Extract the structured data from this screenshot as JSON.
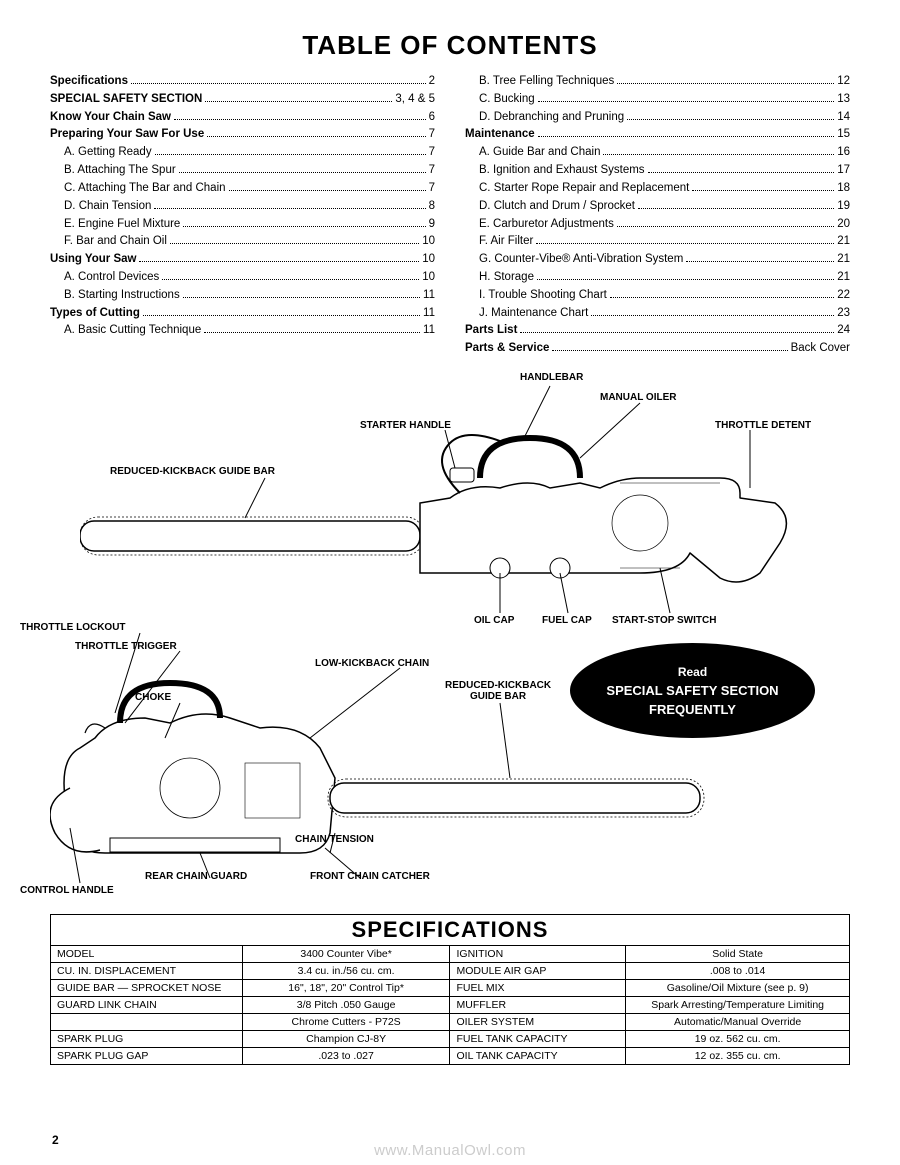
{
  "title": "TABLE OF CONTENTS",
  "toc_left": [
    {
      "label": "Specifications",
      "page": "2",
      "bold": true
    },
    {
      "label": "SPECIAL SAFETY SECTION",
      "page": "3, 4 & 5",
      "bold": true
    },
    {
      "label": "Know Your Chain Saw",
      "page": "6",
      "bold": true
    },
    {
      "label": "Preparing Your Saw For Use",
      "page": "7",
      "bold": true
    },
    {
      "label": "A. Getting Ready",
      "page": "7",
      "sub": true
    },
    {
      "label": "B. Attaching The Spur",
      "page": "7",
      "sub": true
    },
    {
      "label": "C. Attaching The Bar and Chain",
      "page": "7",
      "sub": true
    },
    {
      "label": "D. Chain Tension",
      "page": "8",
      "sub": true
    },
    {
      "label": "E. Engine Fuel Mixture",
      "page": "9",
      "sub": true
    },
    {
      "label": "F. Bar and Chain Oil",
      "page": "10",
      "sub": true
    },
    {
      "label": "Using Your Saw",
      "page": "10",
      "bold": true
    },
    {
      "label": "A. Control Devices",
      "page": "10",
      "sub": true
    },
    {
      "label": "B. Starting Instructions",
      "page": "11",
      "sub": true
    },
    {
      "label": "Types of Cutting",
      "page": "11",
      "bold": true
    },
    {
      "label": "A. Basic Cutting Technique",
      "page": "11",
      "sub": true
    }
  ],
  "toc_right": [
    {
      "label": "B. Tree Felling Techniques",
      "page": "12",
      "sub": true
    },
    {
      "label": "C. Bucking",
      "page": "13",
      "sub": true
    },
    {
      "label": "D. Debranching and Pruning",
      "page": "14",
      "sub": true
    },
    {
      "label": "Maintenance",
      "page": "15",
      "bold": true
    },
    {
      "label": "A. Guide Bar and Chain",
      "page": "16",
      "sub": true
    },
    {
      "label": "B. Ignition and Exhaust Systems",
      "page": "17",
      "sub": true
    },
    {
      "label": "C. Starter Rope Repair and Replacement",
      "page": "18",
      "sub": true
    },
    {
      "label": "D. Clutch and Drum / Sprocket",
      "page": "19",
      "sub": true
    },
    {
      "label": "E. Carburetor Adjustments",
      "page": "20",
      "sub": true
    },
    {
      "label": "F. Air Filter",
      "page": "21",
      "sub": true
    },
    {
      "label": "G. Counter-Vibe® Anti-Vibration System",
      "page": "21",
      "sub": true
    },
    {
      "label": "H. Storage",
      "page": "21",
      "sub": true
    },
    {
      "label": "I. Trouble Shooting Chart",
      "page": "22",
      "sub": true
    },
    {
      "label": "J. Maintenance Chart",
      "page": "23",
      "sub": true
    },
    {
      "label": "Parts List",
      "page": "24",
      "bold": true
    },
    {
      "label": "Parts & Service",
      "page": "Back Cover",
      "bold": true
    }
  ],
  "diagram": {
    "labels": {
      "handlebar": "HANDLEBAR",
      "manual_oiler": "MANUAL OILER",
      "starter_handle": "STARTER HANDLE",
      "throttle_detent": "THROTTLE DETENT",
      "reduced_kickback_guide_bar": "REDUCED-KICKBACK GUIDE BAR",
      "oil_cap": "OIL CAP",
      "fuel_cap": "FUEL CAP",
      "start_stop_switch": "START-STOP SWITCH",
      "throttle_lockout": "THROTTLE LOCKOUT",
      "throttle_trigger": "THROTTLE TRIGGER",
      "low_kickback_chain": "LOW-KICKBACK CHAIN",
      "choke": "CHOKE",
      "reduced_kickback_guide_bar2": "REDUCED-KICKBACK\nGUIDE BAR",
      "chain_tension": "CHAIN TENSION",
      "control_handle": "CONTROL HANDLE",
      "rear_chain_guard": "REAR CHAIN GUARD",
      "front_chain_catcher": "FRONT CHAIN CATCHER"
    },
    "safety_oval": {
      "l1": "Read",
      "l2": "SPECIAL SAFETY SECTION",
      "l3": "FREQUENTLY"
    }
  },
  "spec_title": "SPECIFICATIONS",
  "spec_rows": [
    [
      "MODEL",
      "3400 Counter Vibe*",
      "IGNITION",
      "Solid State"
    ],
    [
      "CU. IN. DISPLACEMENT",
      "3.4 cu. in./56 cu. cm.",
      "MODULE AIR GAP",
      ".008 to .014"
    ],
    [
      "GUIDE BAR — SPROCKET NOSE",
      "16\", 18\", 20\" Control Tip*",
      "FUEL MIX",
      "Gasoline/Oil Mixture (see p. 9)"
    ],
    [
      "GUARD LINK CHAIN",
      "3/8 Pitch .050 Gauge",
      "MUFFLER",
      "Spark Arresting/Temperature Limiting"
    ],
    [
      "",
      "Chrome Cutters - P72S",
      "OILER SYSTEM",
      "Automatic/Manual Override"
    ],
    [
      "SPARK PLUG",
      "Champion CJ-8Y",
      "FUEL TANK CAPACITY",
      "19 oz. 562 cu. cm."
    ],
    [
      "SPARK PLUG GAP",
      ".023 to .027",
      "OIL TANK CAPACITY",
      "12 oz. 355 cu. cm."
    ]
  ],
  "page_number": "2",
  "watermark": "www.ManualOwl.com"
}
